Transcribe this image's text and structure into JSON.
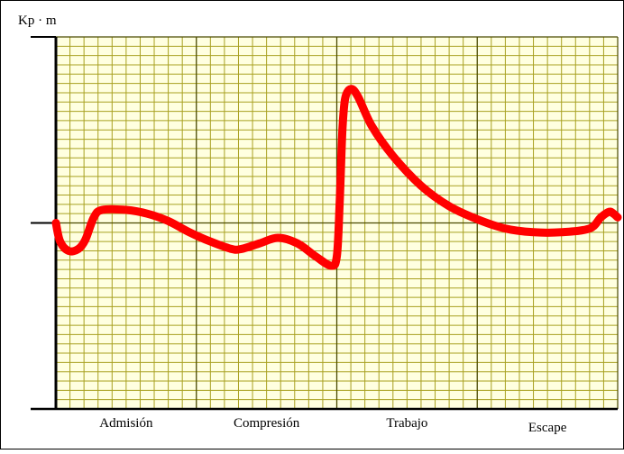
{
  "chart_data": {
    "type": "line",
    "title": "",
    "ylabel": "Kp · m",
    "xlabel": "",
    "grid": true,
    "x_range": [
      0,
      4
    ],
    "y_range": [
      -1,
      1
    ],
    "categories": [
      "Admisión",
      "Compresión",
      "Trabajo",
      "Escape"
    ],
    "series": [
      {
        "color": "#ff0000",
        "points": [
          [
            0.0,
            0.0
          ],
          [
            0.03,
            -0.1
          ],
          [
            0.09,
            -0.15
          ],
          [
            0.16,
            -0.14
          ],
          [
            0.21,
            -0.09
          ],
          [
            0.27,
            0.03
          ],
          [
            0.33,
            0.07
          ],
          [
            0.5,
            0.07
          ],
          [
            0.65,
            0.05
          ],
          [
            0.8,
            0.01
          ],
          [
            0.95,
            -0.05
          ],
          [
            1.1,
            -0.1
          ],
          [
            1.25,
            -0.14
          ],
          [
            1.32,
            -0.14
          ],
          [
            1.45,
            -0.11
          ],
          [
            1.58,
            -0.08
          ],
          [
            1.72,
            -0.11
          ],
          [
            1.85,
            -0.18
          ],
          [
            1.96,
            -0.23
          ],
          [
            2.0,
            -0.18
          ],
          [
            2.02,
            0.1
          ],
          [
            2.04,
            0.5
          ],
          [
            2.06,
            0.67
          ],
          [
            2.1,
            0.72
          ],
          [
            2.15,
            0.68
          ],
          [
            2.25,
            0.52
          ],
          [
            2.4,
            0.36
          ],
          [
            2.6,
            0.2
          ],
          [
            2.8,
            0.09
          ],
          [
            3.0,
            0.02
          ],
          [
            3.2,
            -0.03
          ],
          [
            3.4,
            -0.05
          ],
          [
            3.6,
            -0.05
          ],
          [
            3.8,
            -0.03
          ],
          [
            3.88,
            0.03
          ],
          [
            3.94,
            0.06
          ],
          [
            3.97,
            0.05
          ],
          [
            4.0,
            0.03
          ]
        ]
      }
    ]
  }
}
